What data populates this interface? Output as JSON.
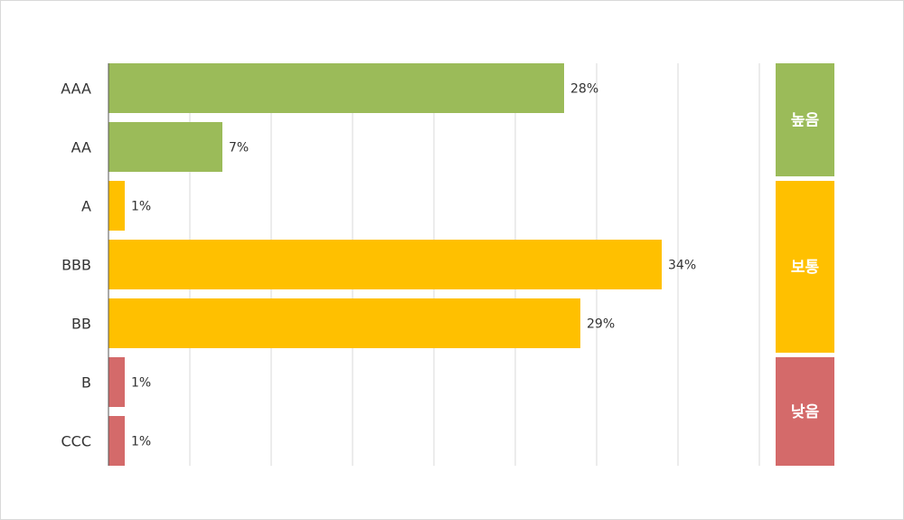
{
  "chart_data": {
    "type": "bar",
    "orientation": "horizontal",
    "categories": [
      "AAA",
      "AA",
      "A",
      "BBB",
      "BB",
      "B",
      "CCC"
    ],
    "values": [
      28,
      7,
      1,
      34,
      29,
      1,
      1
    ],
    "value_labels": [
      "28%",
      "7%",
      "1%",
      "34%",
      "29%",
      "1%",
      "1%"
    ],
    "bar_colors": [
      "#9bbb59",
      "#9bbb59",
      "#ffc000",
      "#ffc000",
      "#ffc000",
      "#d46a6a",
      "#d46a6a"
    ],
    "xlim": [
      0,
      40
    ],
    "grid": true,
    "bands": [
      {
        "label": "높음",
        "color": "#9bbb59",
        "covers": [
          "AAA",
          "AA"
        ]
      },
      {
        "label": "보통",
        "color": "#ffc000",
        "covers": [
          "A",
          "BBB",
          "BB"
        ]
      },
      {
        "label": "낮음",
        "color": "#d46a6a",
        "covers": [
          "B",
          "CCC"
        ]
      }
    ]
  }
}
